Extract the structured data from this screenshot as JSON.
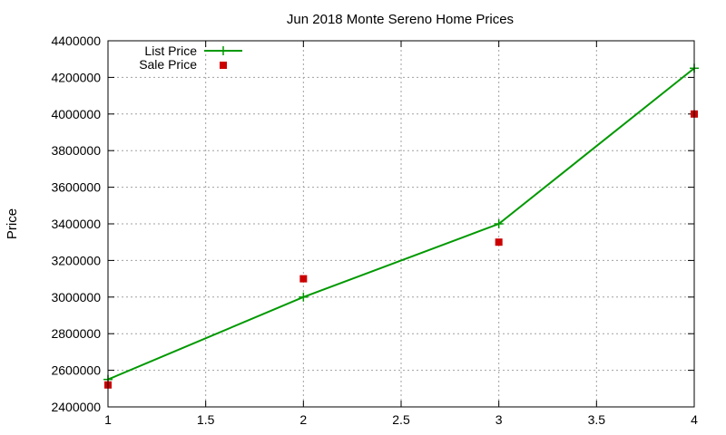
{
  "chart_data": {
    "type": "line",
    "title": "Jun 2018 Monte Sereno Home Prices",
    "xlabel": "",
    "ylabel": "Price",
    "xlim": [
      1,
      4
    ],
    "ylim": [
      2400000,
      4400000
    ],
    "x_ticks": [
      1,
      1.5,
      2,
      2.5,
      3,
      3.5,
      4
    ],
    "x_tick_labels": [
      "1",
      "1.5",
      "2",
      "2.5",
      "3",
      "3.5",
      "4"
    ],
    "y_ticks": [
      2400000,
      2600000,
      2800000,
      3000000,
      3200000,
      3400000,
      3600000,
      3800000,
      4000000,
      4200000,
      4400000
    ],
    "y_tick_labels": [
      "2400000",
      "2600000",
      "2800000",
      "3000000",
      "3200000",
      "3400000",
      "3600000",
      "3800000",
      "4000000",
      "4200000",
      "4400000"
    ],
    "grid": true,
    "legend_position": "top-left",
    "series": [
      {
        "name": "List Price",
        "style": "line with plus markers",
        "color": "#009900",
        "x": [
          1,
          2,
          3,
          4
        ],
        "y": [
          2550000,
          3000000,
          3400000,
          4250000
        ]
      },
      {
        "name": "Sale Price",
        "style": "square markers",
        "color": "#cc0000",
        "x": [
          1,
          2,
          3,
          4
        ],
        "y": [
          2520000,
          3100000,
          3300000,
          4000000
        ]
      }
    ]
  }
}
